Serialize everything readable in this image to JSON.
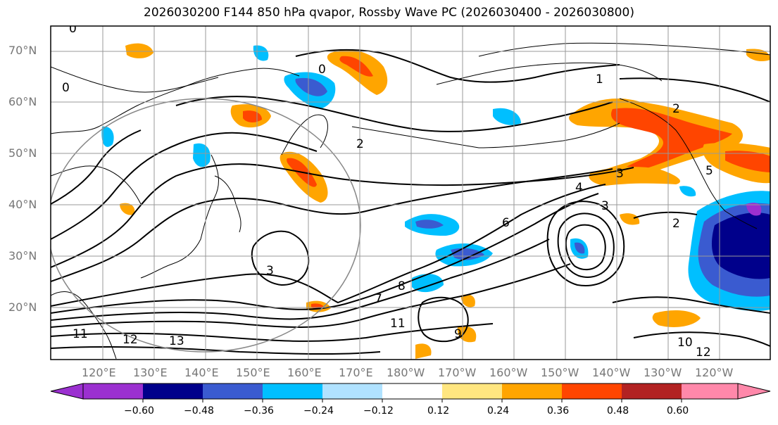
{
  "title": "2026030200 F144 850 hPa qvapor, Rossby Wave PC (2026030400 - 2026030800)",
  "axes": {
    "lat_labels": [
      "70°N",
      "60°N",
      "50°N",
      "40°N",
      "30°N",
      "20°N"
    ],
    "lon_labels": [
      "120°E",
      "130°E",
      "140°E",
      "150°E",
      "160°E",
      "170°E",
      "180°W",
      "170°W",
      "160°W",
      "150°W",
      "140°W",
      "130°W",
      "120°W"
    ]
  },
  "contour_labels": [
    "0",
    "0",
    "0",
    "1",
    "2",
    "2",
    "3",
    "3",
    "3",
    "4",
    "6",
    "7",
    "8",
    "9",
    "10",
    "11",
    "11",
    "12",
    "12",
    "13",
    "5",
    "2"
  ],
  "colorbar": {
    "ticks": [
      "−0.60",
      "−0.48",
      "−0.36",
      "−0.24",
      "−0.12",
      "0.12",
      "0.24",
      "0.36",
      "0.48",
      "0.60"
    ],
    "colors": [
      "#9b30d0",
      "#00008b",
      "#3a5bd0",
      "#00bfff",
      "#b0e2ff",
      "#ffffff",
      "#ffe680",
      "#ffa500",
      "#ff4500",
      "#b22222",
      "#ff88aa"
    ]
  }
}
